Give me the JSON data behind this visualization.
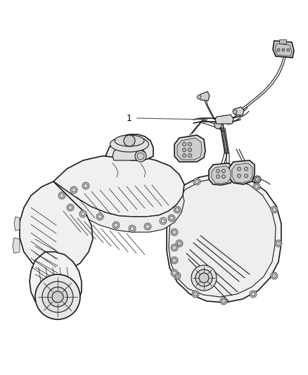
{
  "background_color": "#ffffff",
  "line_color": "#1a1a1a",
  "label_color": "#000000",
  "fig_width": 4.38,
  "fig_height": 5.33,
  "dpi": 100,
  "part_number": "1"
}
